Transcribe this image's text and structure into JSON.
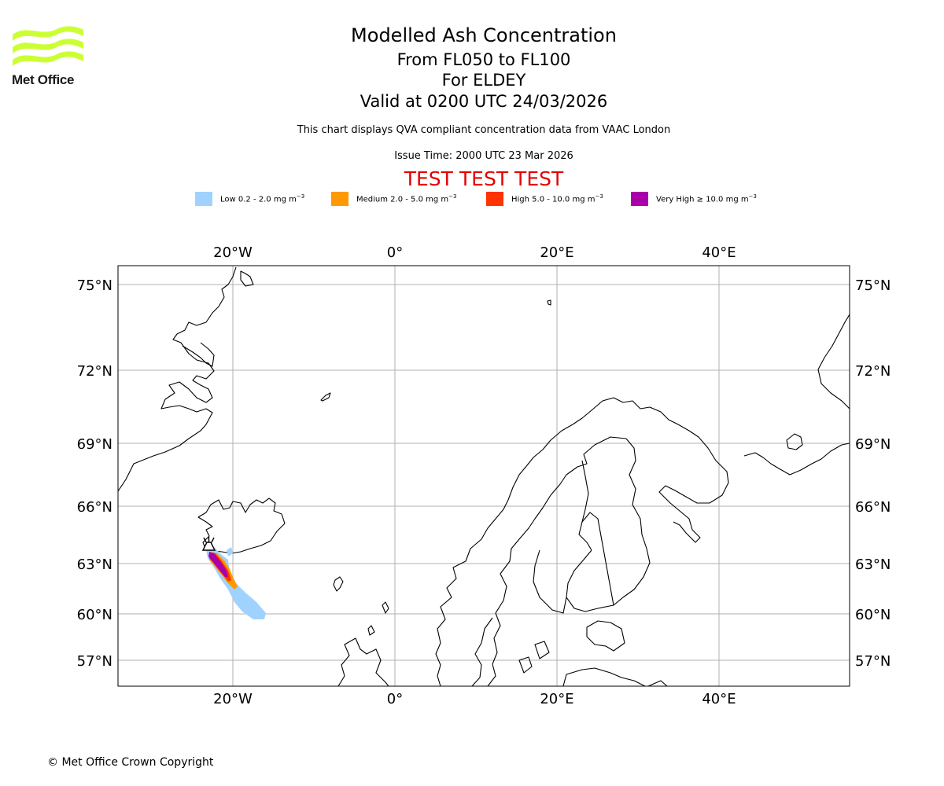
{
  "logo": {
    "text": "Met Office",
    "color": "#ccff33"
  },
  "title": {
    "main": "Modelled Ash Concentration",
    "levels": "From FL050 to FL100",
    "location": "For ELDEY",
    "valid": "Valid at 0200 UTC 24/03/2026",
    "description": "This chart displays QVA compliant concentration data from VAAC London",
    "issue": "Issue Time: 2000 UTC 23 Mar 2026",
    "test_banner": "TEST TEST TEST"
  },
  "legend": [
    {
      "label": "Low 0.2 - 2.0 mg m",
      "exp": "−3",
      "color": "#a0d2ff"
    },
    {
      "label": "Medium 2.0 - 5.0 mg m",
      "exp": "−3",
      "color": "#ff9900"
    },
    {
      "label": "High 5.0 - 10.0 mg m",
      "exp": "−3",
      "color": "#ff3300"
    },
    {
      "label": "Very High  ≥  10.0 mg m",
      "exp": "−3",
      "color": "#aa00aa"
    }
  ],
  "map": {
    "projection": "equidistant-cylindrical-like (Mercator latitude spacing)",
    "lon_ticks": [
      "20°W",
      "0°",
      "20°E",
      "40°E"
    ],
    "lat_ticks": [
      "75°N",
      "72°N",
      "69°N",
      "66°N",
      "63°N",
      "60°N",
      "57°N"
    ],
    "gridlines": true,
    "coastline_color": "#000000",
    "grid_color": "#b0b0b0",
    "volcano": "ELDEY"
  },
  "copyright": "© Met Office Crown Copyright"
}
